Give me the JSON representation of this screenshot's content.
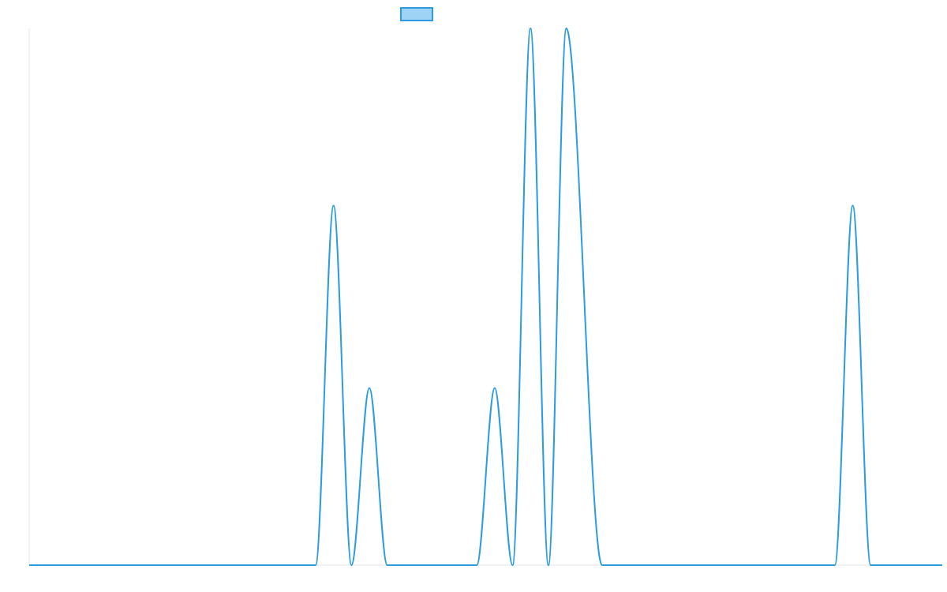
{
  "chart_data": {
    "type": "line",
    "title": "",
    "xlabel": "",
    "ylabel": "",
    "x": [
      0,
      16,
      17,
      18,
      19,
      20,
      22,
      25,
      26,
      27,
      28,
      29,
      30,
      32,
      33,
      34,
      35,
      36,
      38,
      40,
      45,
      46,
      47,
      48,
      49,
      50,
      51
    ],
    "series": [
      {
        "name": "",
        "values": [
          0,
          0,
          0.67,
          0,
          0.33,
          0,
          0,
          0,
          0.33,
          0,
          1.0,
          0,
          1.0,
          0,
          0,
          0,
          0,
          0,
          0,
          0,
          0,
          0.67,
          0,
          0,
          0,
          0,
          0
        ],
        "color": "#2d9be0",
        "fill": "#9ed3f5"
      }
    ],
    "xlim": [
      0,
      51
    ],
    "ylim": [
      0,
      1
    ],
    "grid": false,
    "legend": "top-center"
  }
}
